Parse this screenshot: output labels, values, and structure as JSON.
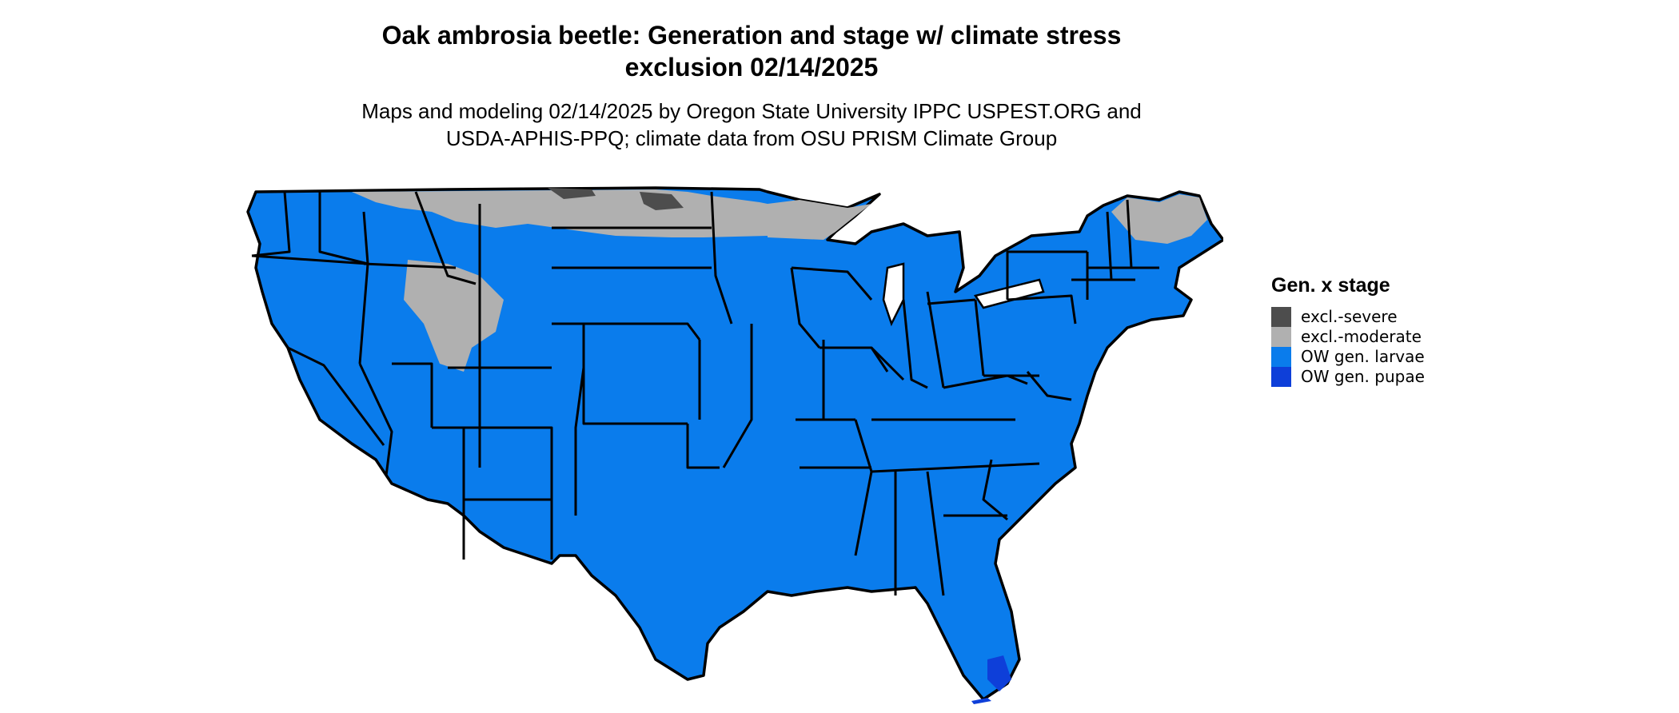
{
  "title": "Oak ambrosia beetle: Generation and stage w/ climate stress\nexclusion 02/14/2025",
  "subtitle": "Maps and modeling 02/14/2025 by Oregon State University IPPC USPEST.ORG and\nUSDA-APHIS-PPQ; climate data from OSU PRISM Climate Group",
  "legend": {
    "title": "Gen. x stage",
    "items": [
      {
        "label": "excl.-severe",
        "color": "#4d4d4d"
      },
      {
        "label": "excl.-moderate",
        "color": "#b0b0b0"
      },
      {
        "label": "OW gen. larvae",
        "color": "#0a7cec"
      },
      {
        "label": "OW gen. pupae",
        "color": "#0e3fd9"
      }
    ]
  },
  "colors": {
    "background": "#ffffff",
    "border": "#000000"
  }
}
